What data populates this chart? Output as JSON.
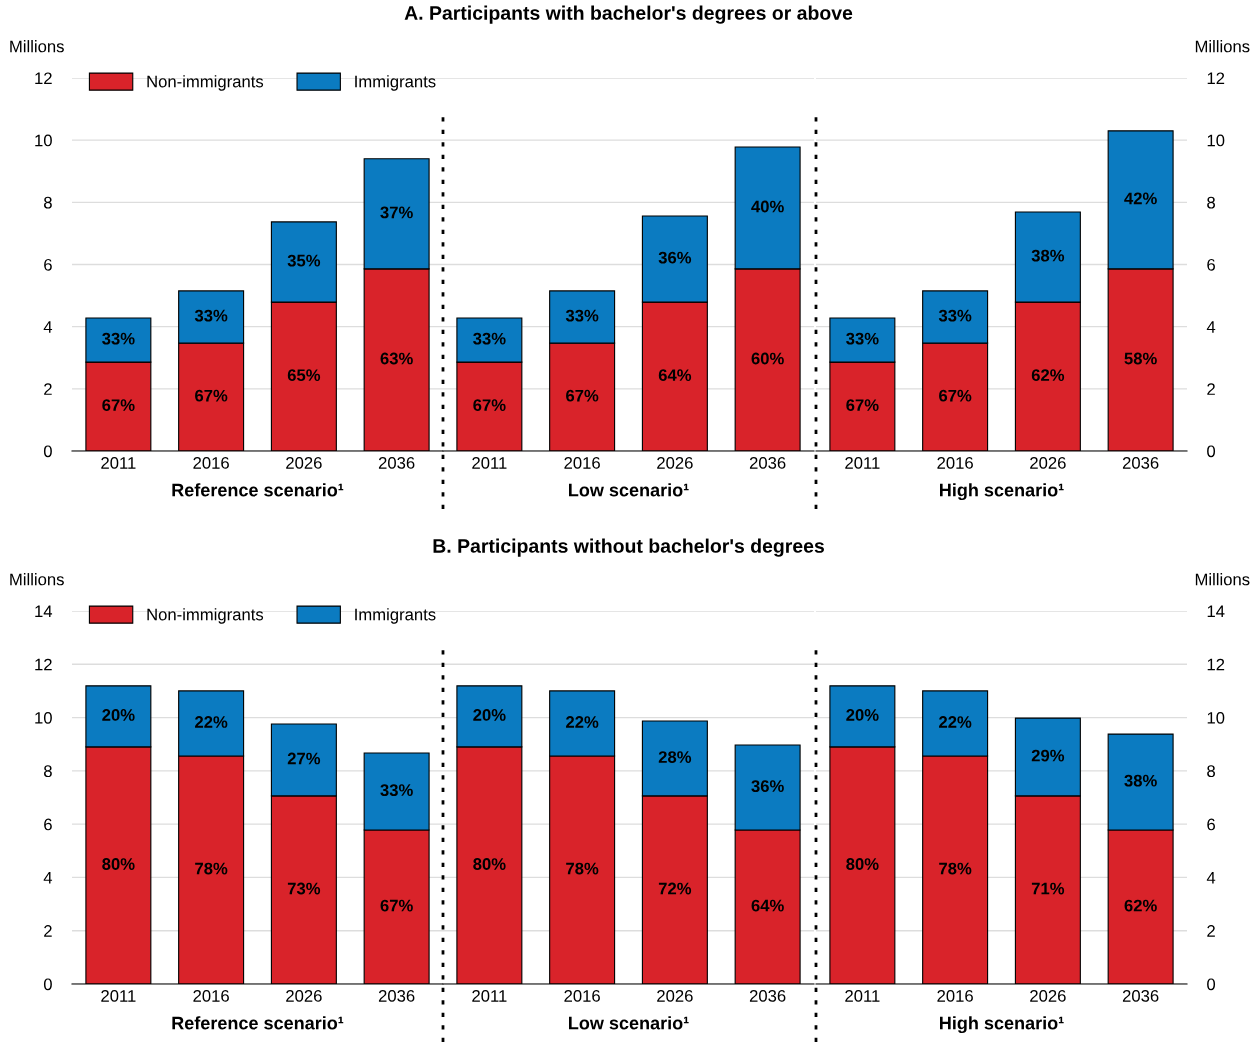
{
  "chart_data": [
    {
      "type": "bar",
      "stacked": true,
      "xlabel": "Reference scenario¹",
      "ylabel": "Millions",
      "categories": [
        "2011",
        "2016",
        "2026",
        "2036"
      ],
      "ylim": [
        0,
        12
      ],
      "yticks": [
        0,
        2,
        4,
        6,
        8,
        10,
        12
      ],
      "grid": "y",
      "legend": "top left",
      "series": [
        {
          "name": "Non-immigrants",
          "color": "#d9232a",
          "values": [
            2.86,
            3.47,
            4.79,
            5.86
          ]
        },
        {
          "name": "Immigrants",
          "color": "#0b7bc1",
          "values": [
            1.42,
            1.68,
            2.58,
            3.54
          ]
        }
      ],
      "annotations": [
        "67%",
        "67%",
        "65%",
        "63%",
        "33%",
        "33%",
        "35%",
        "37%"
      ]
    },
    {
      "type": "bar",
      "stacked": true,
      "title": "A. Participants with bachelor's degrees or above",
      "xlabel": "Low scenario¹",
      "categories": [
        "2011",
        "2016",
        "2026",
        "2036"
      ],
      "ylim": [
        0,
        12
      ],
      "yticks": [
        0,
        2,
        4,
        6,
        8,
        10,
        12
      ],
      "grid": "y",
      "tick_labels": "x",
      "series": [
        {
          "color": "#d9232a",
          "values": [
            2.86,
            3.47,
            4.79,
            5.86
          ]
        },
        {
          "color": "#0b7bc1",
          "values": [
            1.42,
            1.68,
            2.77,
            3.92
          ]
        }
      ],
      "annotations": [
        "67%",
        "67%",
        "64%",
        "60%",
        "33%",
        "33%",
        "36%",
        "40%"
      ]
    },
    {
      "type": "bar",
      "stacked": true,
      "xlabel": "High scenario¹",
      "y2label": "Millions",
      "categories": [
        "2011",
        "2016",
        "2026",
        "2036"
      ],
      "y2lim": [
        0,
        12
      ],
      "y2ticks": [
        0,
        2,
        4,
        6,
        8,
        10,
        12
      ],
      "grid": "y",
      "series": [
        {
          "axis": "y2",
          "color": "#d9232a",
          "values": [
            2.86,
            3.47,
            4.79,
            5.86
          ]
        },
        {
          "axis": "y2",
          "color": "#0b7bc1",
          "values": [
            1.42,
            1.68,
            2.9,
            4.44
          ]
        }
      ],
      "annotations": [
        "67%",
        "67%",
        "62%",
        "58%",
        "33%",
        "33%",
        "38%",
        "42%"
      ]
    },
    {
      "type": "bar",
      "stacked": true,
      "xlabel": "Reference scenario¹",
      "ylabel": "Millions",
      "categories": [
        "2011",
        "2016",
        "2026",
        "2036"
      ],
      "ylim": [
        0,
        14
      ],
      "yticks": [
        0,
        2,
        4,
        6,
        8,
        10,
        12,
        14
      ],
      "grid": "y",
      "legend": "top left",
      "series": [
        {
          "name": "Non-immigrants",
          "color": "#d9232a",
          "values": [
            8.9,
            8.56,
            7.06,
            5.78
          ]
        },
        {
          "name": "Immigrants",
          "color": "#0b7bc1",
          "values": [
            2.29,
            2.44,
            2.7,
            2.89
          ]
        }
      ],
      "annotations": [
        "80%",
        "78%",
        "73%",
        "67%",
        "20%",
        "22%",
        "27%",
        "33%"
      ]
    },
    {
      "type": "bar",
      "stacked": true,
      "title": "B. Participants without bachelor's degrees",
      "xlabel": "Low scenario¹",
      "categories": [
        "2011",
        "2016",
        "2026",
        "2036"
      ],
      "ylim": [
        0,
        14
      ],
      "yticks": [
        0,
        2,
        4,
        6,
        8,
        10,
        12,
        14
      ],
      "grid": "y",
      "tick_labels": "x",
      "series": [
        {
          "color": "#d9232a",
          "values": [
            8.9,
            8.56,
            7.06,
            5.78
          ]
        },
        {
          "color": "#0b7bc1",
          "values": [
            2.29,
            2.44,
            2.81,
            3.19
          ]
        }
      ],
      "annotations": [
        "80%",
        "78%",
        "72%",
        "64%",
        "20%",
        "22%",
        "28%",
        "36%"
      ]
    },
    {
      "type": "bar",
      "stacked": true,
      "xlabel": "High scenario¹",
      "y2label": "Millions",
      "categories": [
        "2011",
        "2016",
        "2026",
        "2036"
      ],
      "y2lim": [
        0,
        14
      ],
      "y2ticks": [
        0,
        2,
        4,
        6,
        8,
        10,
        12,
        14
      ],
      "grid": "y",
      "series": [
        {
          "axis": "y2",
          "color": "#d9232a",
          "values": [
            8.9,
            8.56,
            7.06,
            5.78
          ]
        },
        {
          "axis": "y2",
          "color": "#0b7bc1",
          "values": [
            2.29,
            2.44,
            2.92,
            3.6
          ]
        }
      ],
      "annotations": [
        "80%",
        "78%",
        "71%",
        "62%",
        "20%",
        "22%",
        "29%",
        "38%"
      ]
    }
  ]
}
